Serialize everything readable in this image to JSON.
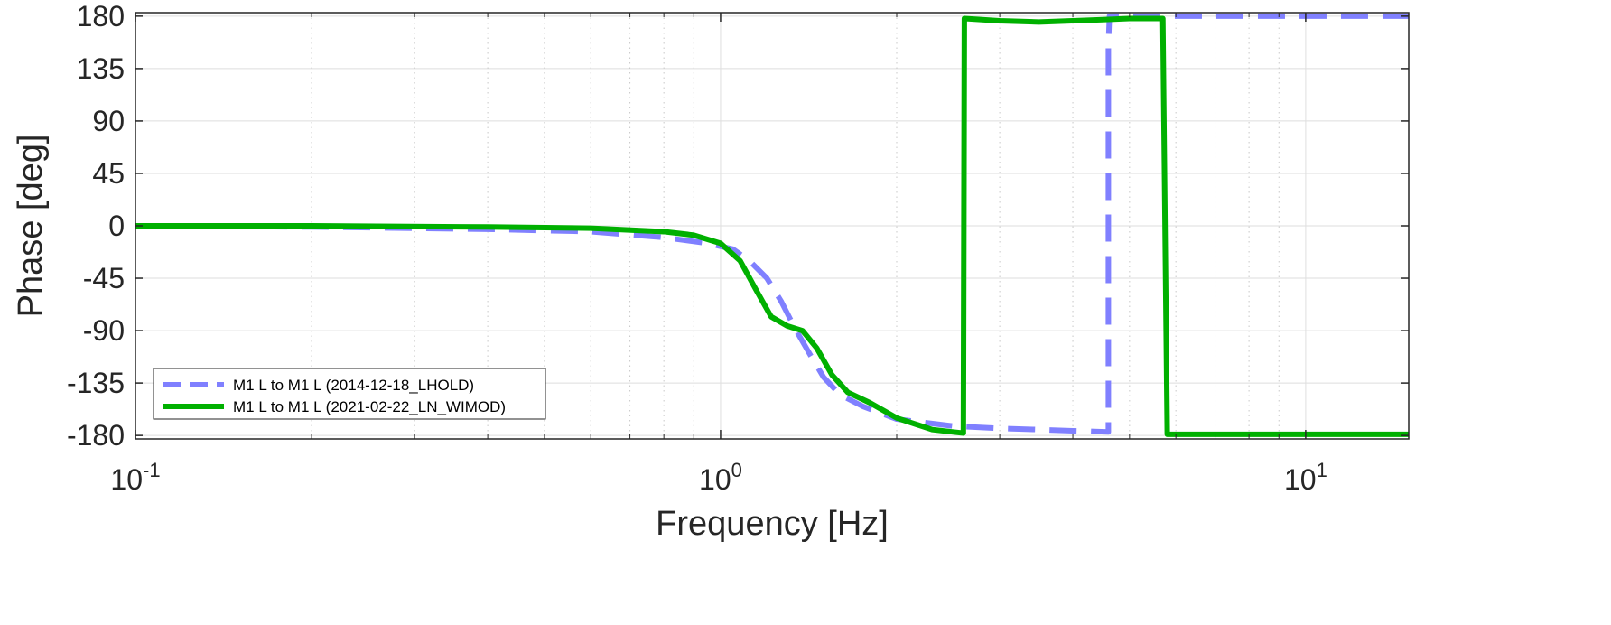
{
  "chart_data": {
    "type": "line",
    "title": "",
    "xlabel": "Frequency [Hz]",
    "ylabel": "Phase [deg]",
    "xscale": "log",
    "xlim": [
      0.1,
      15
    ],
    "ylim": [
      -183,
      183
    ],
    "grid": true,
    "minor_grid_x": true,
    "legend_position": "bottom-left",
    "xticks": [
      {
        "value": 0.1,
        "base": "10",
        "exp": "-1"
      },
      {
        "value": 1,
        "base": "10",
        "exp": "0"
      },
      {
        "value": 10,
        "base": "10",
        "exp": "1"
      }
    ],
    "yticks": [
      {
        "value": 180,
        "label": "180"
      },
      {
        "value": 135,
        "label": "135"
      },
      {
        "value": 90,
        "label": "90"
      },
      {
        "value": 45,
        "label": "45"
      },
      {
        "value": 0,
        "label": "0"
      },
      {
        "value": -45,
        "label": "-45"
      },
      {
        "value": -90,
        "label": "-90"
      },
      {
        "value": -135,
        "label": "-135"
      },
      {
        "value": -180,
        "label": "-180"
      }
    ],
    "series": [
      {
        "name": "M1 L to M1 L (2014-12-18_LHOLD)",
        "color": "#8080ff",
        "style": "dashed",
        "points": [
          [
            0.1,
            0
          ],
          [
            0.2,
            -1
          ],
          [
            0.4,
            -3
          ],
          [
            0.6,
            -5
          ],
          [
            0.8,
            -10
          ],
          [
            0.95,
            -15
          ],
          [
            1.05,
            -20
          ],
          [
            1.12,
            -30
          ],
          [
            1.2,
            -45
          ],
          [
            1.27,
            -65
          ],
          [
            1.34,
            -88
          ],
          [
            1.42,
            -110
          ],
          [
            1.5,
            -130
          ],
          [
            1.6,
            -145
          ],
          [
            1.75,
            -155
          ],
          [
            2.0,
            -166
          ],
          [
            2.5,
            -172
          ],
          [
            3.0,
            -174
          ],
          [
            3.5,
            -175
          ],
          [
            4.0,
            -176
          ],
          [
            4.6,
            -177
          ],
          [
            4.6,
            155
          ],
          [
            4.62,
            180
          ],
          [
            6,
            180
          ],
          [
            10,
            180
          ],
          [
            15,
            180
          ]
        ]
      },
      {
        "name": "M1 L to M1 L (2021-02-22_LN_WIMOD)",
        "color": "#00b000",
        "style": "solid",
        "points": [
          [
            0.1,
            0
          ],
          [
            0.2,
            0
          ],
          [
            0.4,
            -1
          ],
          [
            0.6,
            -2
          ],
          [
            0.8,
            -5
          ],
          [
            0.9,
            -8
          ],
          [
            1.0,
            -15
          ],
          [
            1.08,
            -30
          ],
          [
            1.15,
            -55
          ],
          [
            1.22,
            -78
          ],
          [
            1.3,
            -86
          ],
          [
            1.38,
            -90
          ],
          [
            1.46,
            -105
          ],
          [
            1.55,
            -128
          ],
          [
            1.65,
            -143
          ],
          [
            1.8,
            -152
          ],
          [
            2.0,
            -165
          ],
          [
            2.3,
            -175
          ],
          [
            2.6,
            -178
          ],
          [
            2.61,
            178
          ],
          [
            3.0,
            176
          ],
          [
            3.5,
            175
          ],
          [
            4.5,
            177
          ],
          [
            5.0,
            178
          ],
          [
            5.7,
            178
          ],
          [
            5.8,
            -179
          ],
          [
            8,
            -179
          ],
          [
            12,
            -179
          ],
          [
            15,
            -179
          ]
        ]
      }
    ]
  }
}
